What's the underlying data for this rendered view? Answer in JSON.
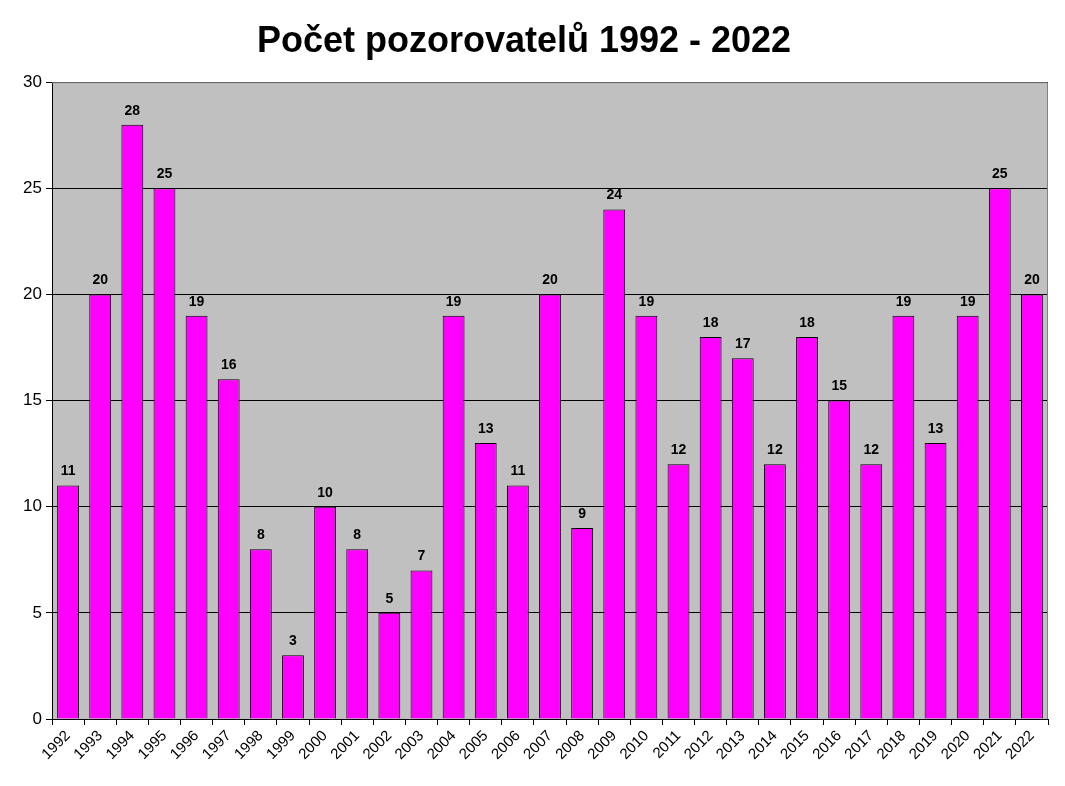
{
  "chart_data": {
    "type": "bar",
    "title": "Počet pozorovatelů 1992 - 2022",
    "categories": [
      "1992",
      "1993",
      "1994",
      "1995",
      "1996",
      "1997",
      "1998",
      "1999",
      "2000",
      "2001",
      "2002",
      "2003",
      "2004",
      "2005",
      "2006",
      "2007",
      "2008",
      "2009",
      "2010",
      "2011",
      "2012",
      "2013",
      "2014",
      "2015",
      "2016",
      "2017",
      "2018",
      "2019",
      "2020",
      "2021",
      "2022"
    ],
    "values": [
      11,
      20,
      28,
      25,
      19,
      16,
      8,
      3,
      10,
      8,
      5,
      7,
      19,
      13,
      11,
      20,
      9,
      24,
      19,
      12,
      18,
      17,
      12,
      18,
      15,
      12,
      19,
      13,
      19,
      25,
      20
    ],
    "color": "#ff00ff",
    "ylim": [
      0,
      30
    ],
    "yticks": [
      0,
      5,
      10,
      15,
      20,
      25,
      30
    ],
    "grid": "y",
    "data_labels": true
  }
}
